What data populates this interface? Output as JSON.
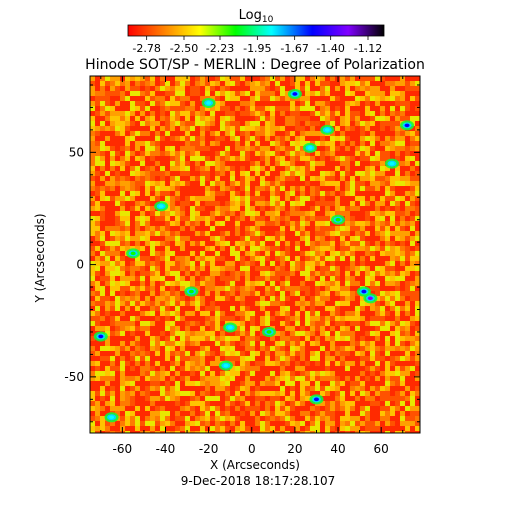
{
  "chart_data": {
    "type": "heatmap",
    "title": "Hinode SOT/SP - MERLIN : Degree of Polarization",
    "subtitle": "9-Dec-2018 18:17:28.107",
    "xlabel": "X (Arcseconds)",
    "ylabel": "Y (Arcseconds)",
    "xlim": [
      -75,
      78
    ],
    "ylim": [
      -75,
      84
    ],
    "x_ticks": [
      -60,
      -40,
      -20,
      0,
      20,
      40,
      60
    ],
    "y_ticks": [
      -50,
      0,
      50
    ],
    "grid": false,
    "colorbar": {
      "label_base": "Log",
      "label_sub": "10",
      "range": [
        -2.92,
        -1.0
      ],
      "tick_labels": [
        "-2.78",
        "-2.50",
        "-2.23",
        "-1.95",
        "-1.67",
        "-1.40",
        "-1.12"
      ],
      "colormap": [
        "#ff0000",
        "#ff8000",
        "#ffff00",
        "#00ff00",
        "#00ffff",
        "#0000ff",
        "#8000ff",
        "#000000"
      ]
    },
    "background_level": -2.75,
    "field_colors": [
      "#ff2a00",
      "#ff5200",
      "#ff7a00",
      "#ffa000",
      "#ffc400",
      "#e8e800"
    ],
    "features": [
      {
        "x": 20,
        "y": 76,
        "level": -1.6
      },
      {
        "x": 27,
        "y": 52,
        "level": -1.7
      },
      {
        "x": 72,
        "y": 62,
        "level": -1.5
      },
      {
        "x": -20,
        "y": 72,
        "level": -1.9
      },
      {
        "x": -42,
        "y": 26,
        "level": -1.8
      },
      {
        "x": 40,
        "y": 20,
        "level": -2.0
      },
      {
        "x": 55,
        "y": -15,
        "level": -1.4
      },
      {
        "x": 52,
        "y": -12,
        "level": -1.5
      },
      {
        "x": -70,
        "y": -32,
        "level": -1.6
      },
      {
        "x": -10,
        "y": -28,
        "level": -1.9
      },
      {
        "x": -12,
        "y": -45,
        "level": -1.8
      },
      {
        "x": 30,
        "y": -60,
        "level": -1.6
      },
      {
        "x": -65,
        "y": -68,
        "level": -1.9
      },
      {
        "x": 8,
        "y": -30,
        "level": -2.0
      },
      {
        "x": -28,
        "y": -12,
        "level": -2.1
      },
      {
        "x": 65,
        "y": 45,
        "level": -1.9
      },
      {
        "x": -55,
        "y": 5,
        "level": -2.1
      },
      {
        "x": 35,
        "y": 60,
        "level": -1.9
      }
    ]
  }
}
